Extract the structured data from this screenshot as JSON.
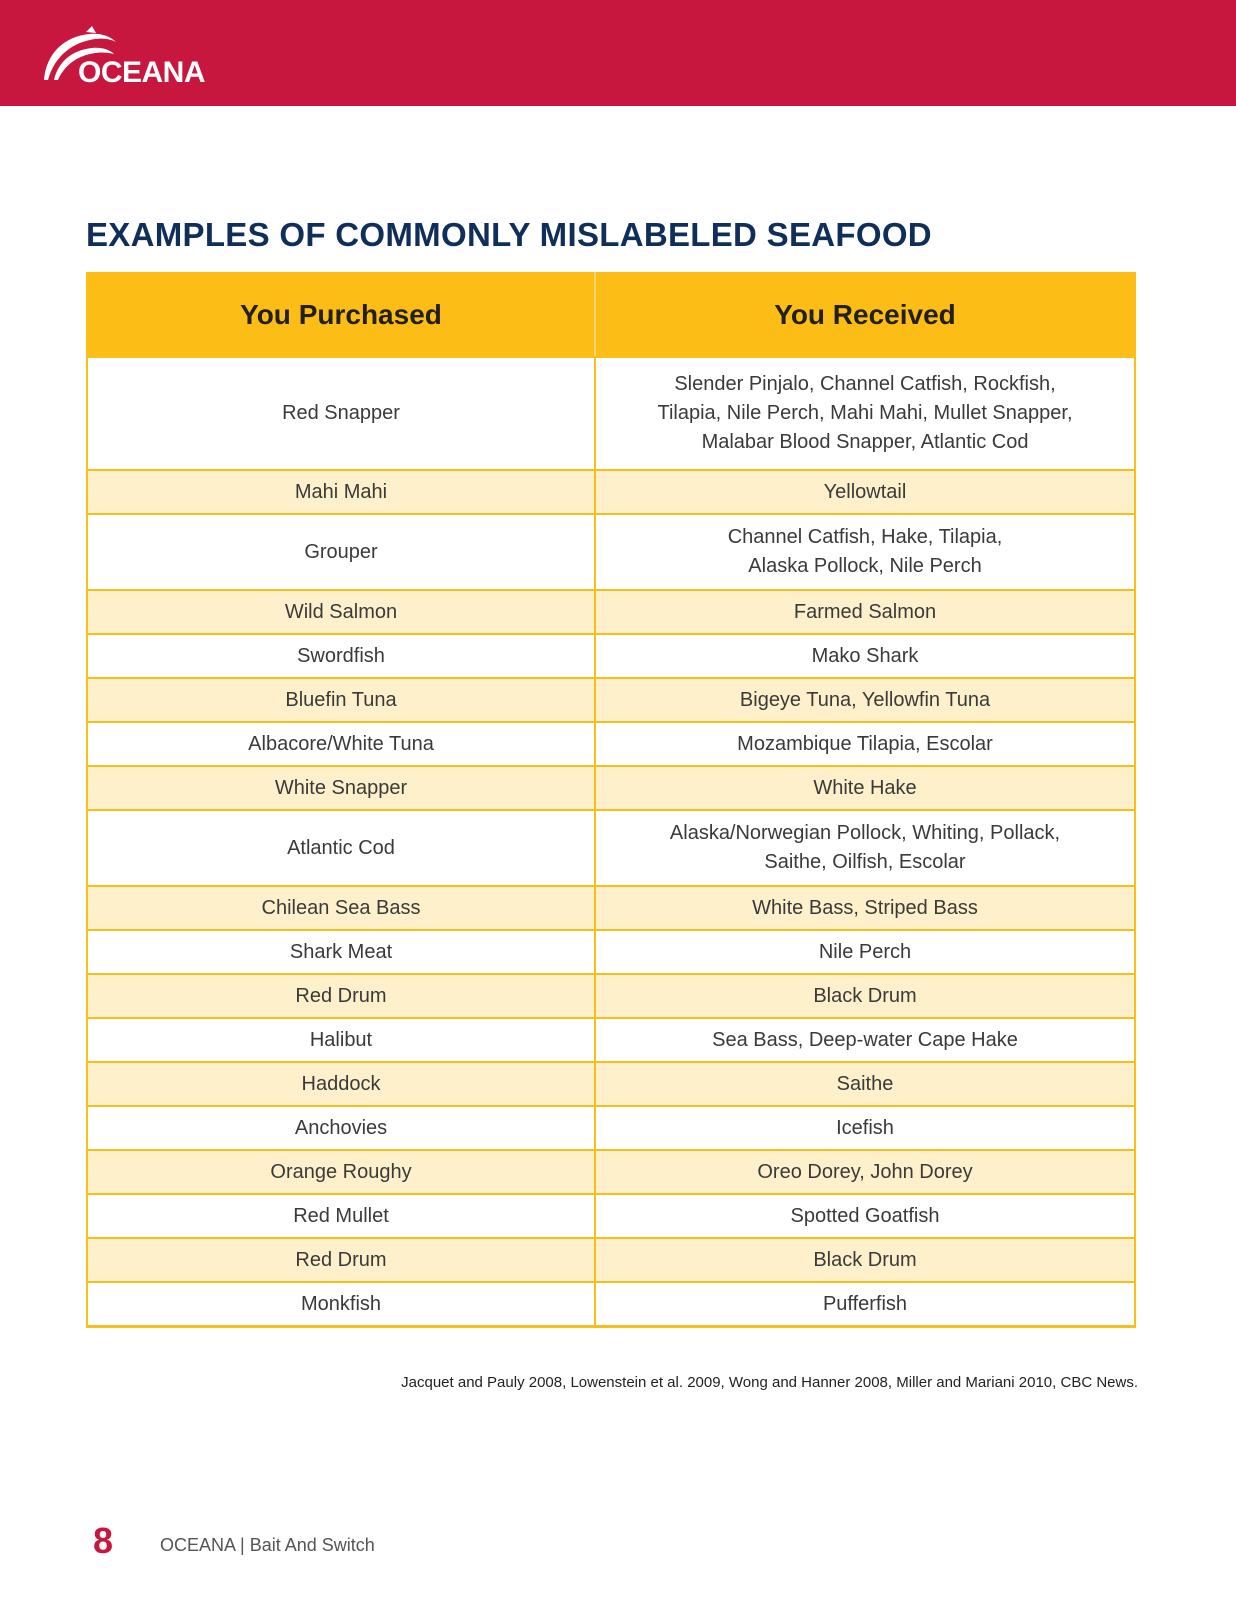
{
  "header": {
    "brand": "OCEANA",
    "brand_color": "#c8173f"
  },
  "title": "EXAMPLES OF COMMONLY MISLABELED SEAFOOD",
  "table": {
    "columns": [
      "You Purchased",
      "You Received"
    ],
    "rows": [
      {
        "purchased": "Red Snapper",
        "received": "Slender Pinjalo, Channel Catfish, Rockfish,\nTilapia, Nile Perch, Mahi Mahi, Mullet Snapper,\nMalabar Blood Snapper, Atlantic Cod"
      },
      {
        "purchased": "Mahi Mahi",
        "received": "Yellowtail"
      },
      {
        "purchased": "Grouper",
        "received": "Channel Catfish, Hake, Tilapia,\nAlaska Pollock, Nile Perch"
      },
      {
        "purchased": "Wild Salmon",
        "received": "Farmed Salmon"
      },
      {
        "purchased": "Swordfish",
        "received": "Mako Shark"
      },
      {
        "purchased": "Bluefin Tuna",
        "received": "Bigeye Tuna, Yellowfin Tuna"
      },
      {
        "purchased": "Albacore/White Tuna",
        "received": "Mozambique Tilapia, Escolar"
      },
      {
        "purchased": "White Snapper",
        "received": "White Hake"
      },
      {
        "purchased": "Atlantic Cod",
        "received": "Alaska/Norwegian Pollock, Whiting, Pollack,\nSaithe, Oilfish, Escolar"
      },
      {
        "purchased": "Chilean Sea Bass",
        "received": "White Bass, Striped Bass"
      },
      {
        "purchased": "Shark Meat",
        "received": "Nile Perch"
      },
      {
        "purchased": "Red Drum",
        "received": "Black Drum"
      },
      {
        "purchased": "Halibut",
        "received": "Sea Bass, Deep-water Cape Hake"
      },
      {
        "purchased": "Haddock",
        "received": "Saithe"
      },
      {
        "purchased": "Anchovies",
        "received": "Icefish"
      },
      {
        "purchased": "Orange Roughy",
        "received": "Oreo Dorey, John Dorey"
      },
      {
        "purchased": "Red Mullet",
        "received": "Spotted Goatfish"
      },
      {
        "purchased": "Red Drum",
        "received": "Black Drum"
      },
      {
        "purchased": "Monkfish",
        "received": "Pufferfish"
      }
    ]
  },
  "source": "Jacquet and Pauly 2008, Lowenstein et al. 2009, Wong and Hanner 2008, Miller and Mariani 2010, CBC News.",
  "footer": {
    "page_number": "8",
    "text": "OCEANA | Bait And Switch"
  }
}
